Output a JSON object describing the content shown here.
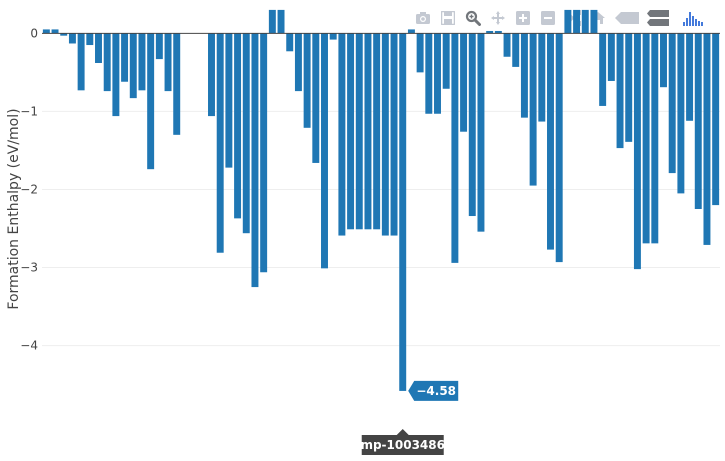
{
  "chart_data": {
    "type": "bar",
    "ylabel": "Formation Enthalpy (eV/mol)",
    "ylim": [
      -4.85,
      0.35
    ],
    "yticks": [
      0,
      -1,
      -2,
      -3,
      -4
    ],
    "ytick_labels": [
      "0",
      "−1",
      "−2",
      "−3",
      "−4"
    ],
    "grid": true,
    "bar_color": "#1f77b4",
    "values": [
      0.05,
      0.05,
      -0.03,
      -0.13,
      -0.73,
      -0.15,
      -0.38,
      -0.74,
      -1.06,
      -0.62,
      -0.83,
      -0.73,
      -1.74,
      -0.33,
      -0.74,
      -1.3,
      null,
      null,
      null,
      -1.06,
      -2.81,
      -1.72,
      -2.37,
      -2.56,
      -3.25,
      -3.06,
      0.3,
      0.3,
      -0.23,
      -0.74,
      -1.21,
      -1.66,
      -3.01,
      -0.08,
      -2.59,
      -2.51,
      -2.51,
      -2.51,
      -2.51,
      -2.59,
      -2.59,
      -4.58,
      0.05,
      -0.5,
      -1.03,
      -1.03,
      -0.71,
      -2.94,
      -1.26,
      -2.34,
      -2.54,
      0.03,
      0.03,
      -0.3,
      -0.43,
      -1.08,
      -1.95,
      -1.13,
      -2.77,
      -2.93,
      0.3,
      0.3,
      0.3,
      0.3,
      -0.93,
      -0.61,
      -1.47,
      -1.39,
      -3.02,
      -2.69,
      -2.69,
      -0.69,
      -1.79,
      -2.05,
      -1.12,
      -2.25,
      -2.71,
      -2.2
    ],
    "hover": {
      "index": 41,
      "value_label": "−4.58",
      "x_label": "mp-1003486"
    }
  },
  "modebar": {
    "buttons": [
      "camera-icon",
      "save-icon",
      "zoom-icon",
      "pan-icon",
      "zoom-in-icon",
      "zoom-out-icon",
      "autoscale-icon",
      "home-icon",
      "spike-lines-icon",
      "compare-hover-icon",
      "plotly-logo-icon"
    ]
  }
}
